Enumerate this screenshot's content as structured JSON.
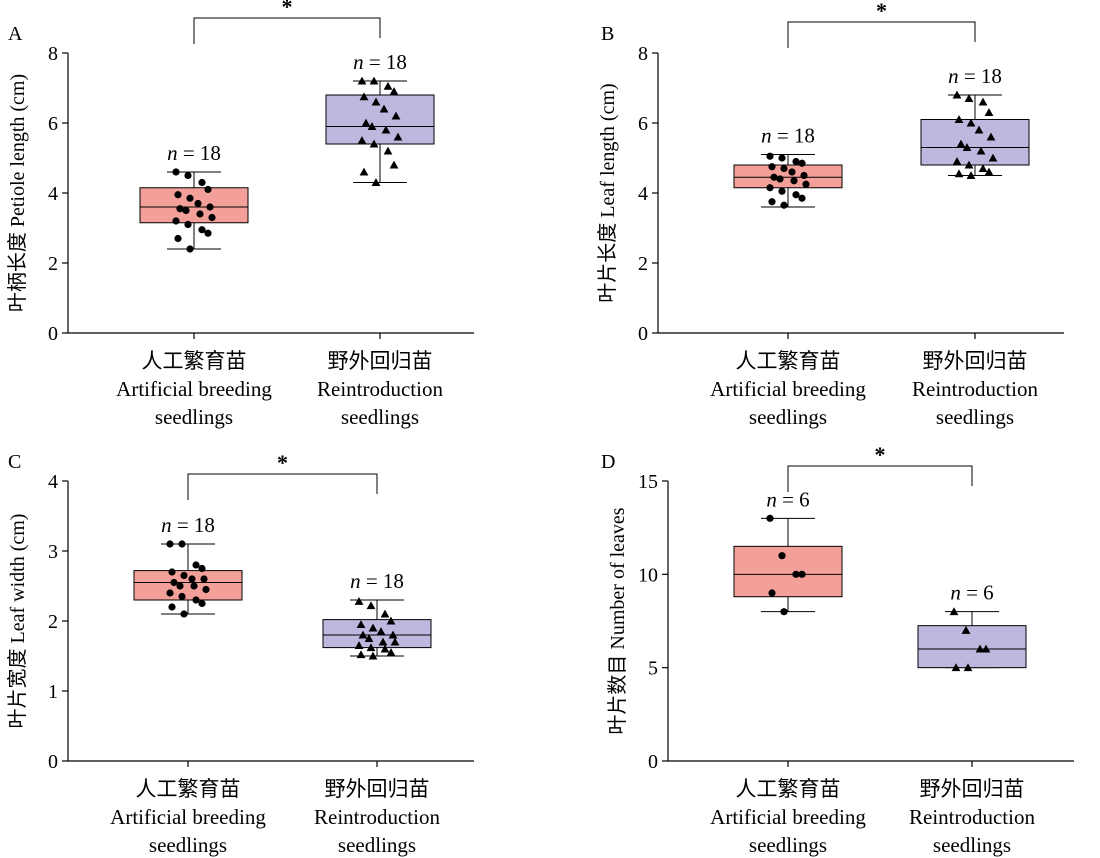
{
  "colors": {
    "group1_fill": "#f4a09a",
    "group2_fill": "#bdb8dd",
    "stroke": "#000000"
  },
  "chart_data": [
    {
      "panel": "A",
      "type": "box",
      "ylabel": "叶柄长度 Petiole length (cm)",
      "ylim": [
        0,
        8
      ],
      "yticks": [
        0,
        2,
        4,
        6,
        8
      ],
      "categories": [
        {
          "line1": "人工繁育苗",
          "line2": "Artificial breeding",
          "line3": "seedlings"
        },
        {
          "line1": "野外回归苗",
          "line2": "Reintroduction",
          "line3": "seedlings"
        }
      ],
      "significance": "*",
      "groups": [
        {
          "marker": "circle",
          "n_italic": "n",
          "n_text": " = 18",
          "box": {
            "min": 2.4,
            "q1": 3.15,
            "median": 3.6,
            "q3": 4.15,
            "max": 4.6
          },
          "points": [
            4.6,
            4.5,
            4.3,
            4.1,
            3.95,
            3.85,
            3.7,
            3.6,
            3.55,
            3.5,
            3.4,
            3.3,
            3.2,
            3.1,
            2.95,
            2.85,
            2.7,
            2.4
          ]
        },
        {
          "marker": "triangle",
          "n_italic": "n",
          "n_text": " = 18",
          "box": {
            "min": 4.3,
            "q1": 5.4,
            "median": 5.9,
            "q3": 6.8,
            "max": 7.2
          },
          "points": [
            7.2,
            7.2,
            7.05,
            6.9,
            6.75,
            6.6,
            6.4,
            6.2,
            6.0,
            5.9,
            5.8,
            5.6,
            5.5,
            5.4,
            5.2,
            4.8,
            4.6,
            4.3
          ]
        }
      ]
    },
    {
      "panel": "B",
      "type": "box",
      "ylabel": "叶片长度 Leaf length (cm)",
      "ylim": [
        0,
        8
      ],
      "yticks": [
        0,
        2,
        4,
        6,
        8
      ],
      "categories": [
        {
          "line1": "人工繁育苗",
          "line2": "Artificial breeding",
          "line3": "seedlings"
        },
        {
          "line1": "野外回归苗",
          "line2": "Reintroduction",
          "line3": "seedlings"
        }
      ],
      "significance": "*",
      "groups": [
        {
          "marker": "circle",
          "n_italic": "n",
          "n_text": " = 18",
          "box": {
            "min": 3.6,
            "q1": 4.15,
            "median": 4.45,
            "q3": 4.8,
            "max": 5.1
          },
          "points": [
            5.05,
            5.0,
            4.9,
            4.85,
            4.75,
            4.7,
            4.6,
            4.5,
            4.45,
            4.4,
            4.35,
            4.25,
            4.15,
            4.05,
            3.95,
            3.85,
            3.75,
            3.65
          ]
        },
        {
          "marker": "triangle",
          "n_italic": "n",
          "n_text": " = 18",
          "box": {
            "min": 4.5,
            "q1": 4.8,
            "median": 5.3,
            "q3": 6.1,
            "max": 6.8
          },
          "points": [
            6.8,
            6.7,
            6.6,
            6.3,
            6.1,
            6.0,
            5.8,
            5.6,
            5.4,
            5.3,
            5.2,
            5.0,
            4.9,
            4.8,
            4.7,
            4.6,
            4.55,
            4.5
          ]
        }
      ]
    },
    {
      "panel": "C",
      "type": "box",
      "ylabel": "叶片宽度 Leaf width (cm)",
      "ylim": [
        0,
        4
      ],
      "yticks": [
        0,
        1,
        2,
        3,
        4
      ],
      "categories": [
        {
          "line1": "人工繁育苗",
          "line2": "Artificial breeding",
          "line3": "seedlings"
        },
        {
          "line1": "野外回归苗",
          "line2": "Reintroduction",
          "line3": "seedlings"
        }
      ],
      "significance": "*",
      "groups": [
        {
          "marker": "circle",
          "n_italic": "n",
          "n_text": " = 18",
          "box": {
            "min": 2.1,
            "q1": 2.3,
            "median": 2.55,
            "q3": 2.72,
            "max": 3.1
          },
          "points": [
            3.1,
            3.1,
            2.8,
            2.75,
            2.7,
            2.65,
            2.6,
            2.6,
            2.55,
            2.5,
            2.5,
            2.45,
            2.4,
            2.35,
            2.3,
            2.25,
            2.2,
            2.1
          ]
        },
        {
          "marker": "triangle",
          "n_italic": "n",
          "n_text": " = 18",
          "box": {
            "min": 1.5,
            "q1": 1.62,
            "median": 1.8,
            "q3": 2.02,
            "max": 2.3
          },
          "points": [
            2.28,
            2.22,
            2.1,
            2.0,
            1.95,
            1.9,
            1.85,
            1.8,
            1.8,
            1.75,
            1.7,
            1.7,
            1.65,
            1.62,
            1.6,
            1.55,
            1.52,
            1.5
          ]
        }
      ]
    },
    {
      "panel": "D",
      "type": "box",
      "ylabel": "叶片数目 Number of leaves",
      "ylim": [
        0,
        15
      ],
      "yticks": [
        0,
        5,
        10,
        15
      ],
      "categories": [
        {
          "line1": "人工繁育苗",
          "line2": "Artificial breeding",
          "line3": "seedlings"
        },
        {
          "line1": "野外回归苗",
          "line2": "Reintroduction",
          "line3": "seedlings"
        }
      ],
      "significance": "*",
      "groups": [
        {
          "marker": "circle",
          "n_italic": "n",
          "n_text": " = 6",
          "box": {
            "min": 8,
            "q1": 8.8,
            "median": 10,
            "q3": 11.5,
            "max": 13
          },
          "points": [
            13,
            11,
            10,
            10,
            9,
            8
          ]
        },
        {
          "marker": "triangle",
          "n_italic": "n",
          "n_text": " = 6",
          "box": {
            "min": 5,
            "q1": 5,
            "median": 6,
            "q3": 7.25,
            "max": 8
          },
          "points": [
            8,
            7,
            6,
            6,
            5,
            5
          ]
        }
      ]
    }
  ]
}
